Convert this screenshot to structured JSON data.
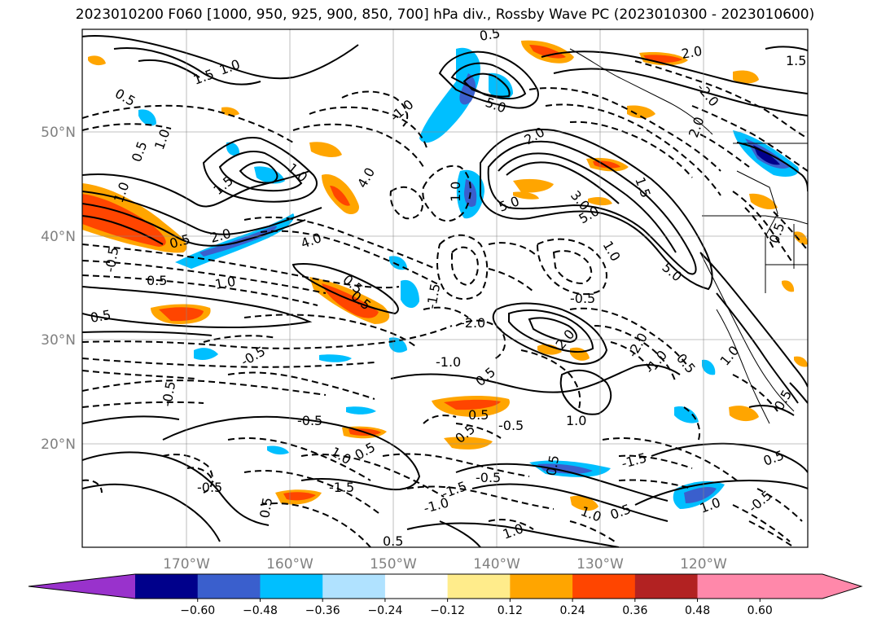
{
  "title": "2023010200 F060 [1000, 950, 925, 900, 850, 700] hPa div., Rossby Wave PC (2023010300 - 2023010600)",
  "map": {
    "lat_labels": [
      "50°N",
      "40°N",
      "30°N",
      "20°N"
    ],
    "lon_labels": [
      "170°W",
      "160°W",
      "150°W",
      "140°W",
      "130°W",
      "120°W"
    ],
    "grid": true,
    "axis_label_color": "#808080"
  },
  "contour_labels": [
    {
      "text": "1.0",
      "kind": "solid"
    },
    {
      "text": "1.5",
      "kind": "solid"
    },
    {
      "text": "2.0",
      "kind": "solid"
    },
    {
      "text": "3.0",
      "kind": "solid"
    },
    {
      "text": "4.0",
      "kind": "solid"
    },
    {
      "text": "5.0",
      "kind": "solid"
    },
    {
      "text": "-0.5",
      "kind": "dashed"
    },
    {
      "text": "-1.0",
      "kind": "dashed"
    },
    {
      "text": "-1.5",
      "kind": "dashed"
    },
    {
      "text": "-2.0",
      "kind": "dashed"
    },
    {
      "text": "0.5",
      "kind": "solid"
    }
  ],
  "colorbar": {
    "ticks": [
      "−0.60",
      "−0.48",
      "−0.36",
      "−0.24",
      "−0.12",
      "0.12",
      "0.24",
      "0.36",
      "0.48",
      "0.60"
    ],
    "colors": [
      "#9932cc",
      "#00008b",
      "#3a5fcd",
      "#00bfff",
      "#b0e2ff",
      "#ffffff",
      "#ffec8b",
      "#ffa500",
      "#ff4500",
      "#b22222",
      "#ff88aa"
    ]
  }
}
